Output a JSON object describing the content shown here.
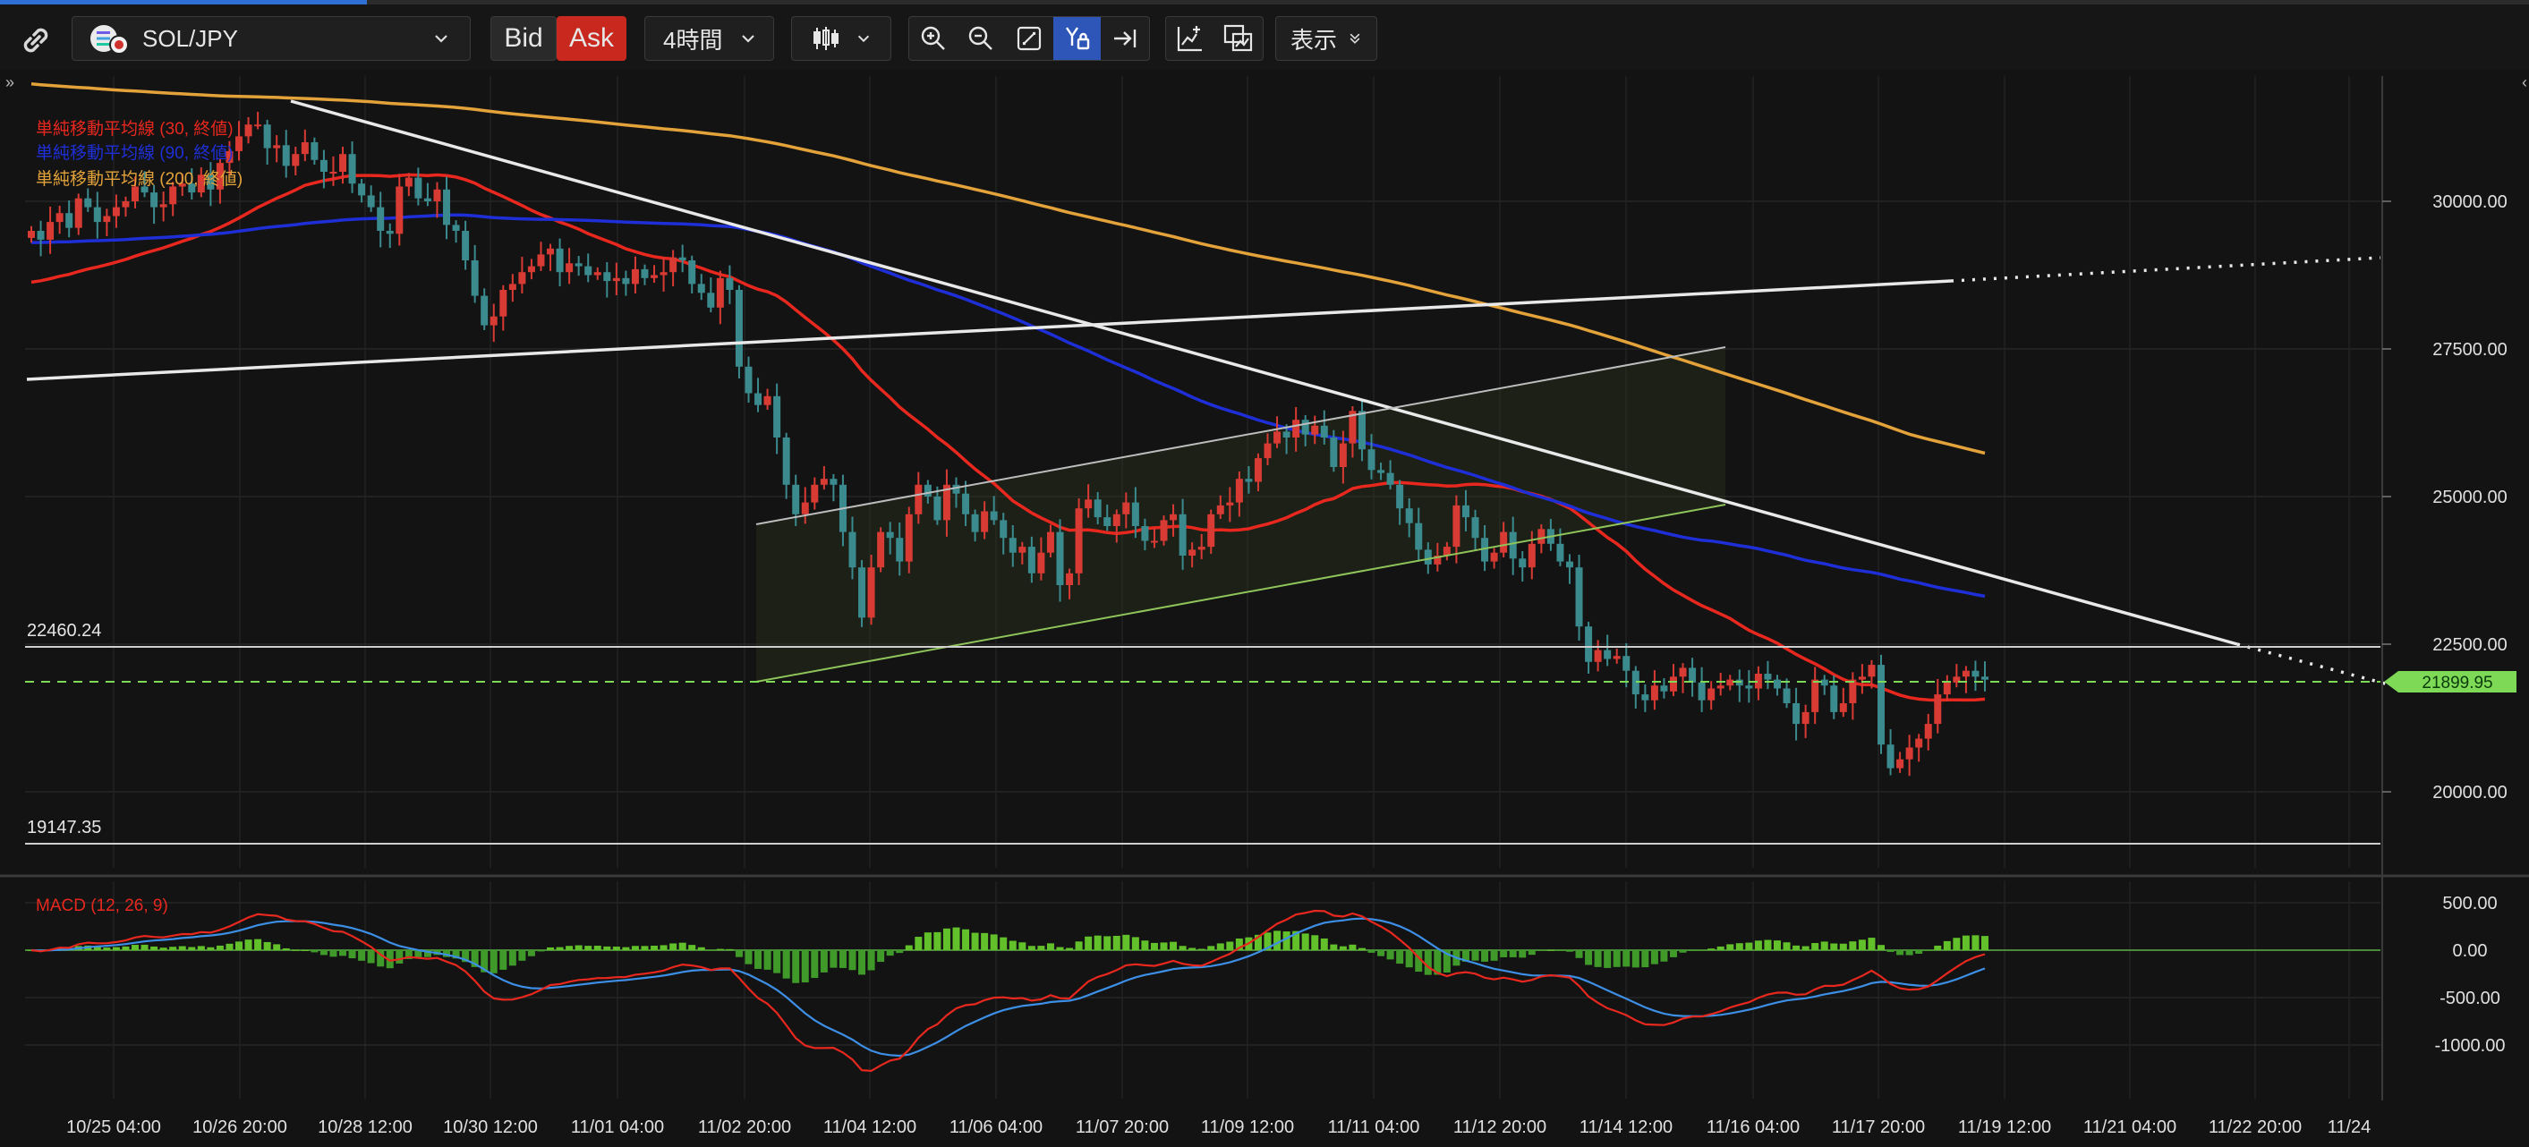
{
  "toolbar": {
    "symbol": "SOL/JPY",
    "bid_label": "Bid",
    "ask_label": "Ask",
    "timeframe": "4時間",
    "view_label": "表示",
    "icons": [
      "link-icon",
      "symbol-logo-icon",
      "chevron-down-icon",
      "candlestick-icon",
      "zoom-in-icon",
      "zoom-out-icon",
      "fit-screen-icon",
      "y-axis-lock-icon",
      "scroll-to-end-icon",
      "add-indicator-icon",
      "compare-icon"
    ]
  },
  "colors": {
    "background": "#131313",
    "up_candle": "#d83a34",
    "down_candle": "#3a8a8e",
    "sma30": "#e8281e",
    "sma90": "#1f2fd8",
    "sma200": "#e3a33a",
    "price_tag": "#7ed957",
    "macd_line": "#e8281e",
    "signal_line": "#3d8fe6",
    "hist_pos": "#62c02a",
    "hist_neg": "#3f9a2a"
  },
  "chart_data": [
    {
      "type": "candlestick",
      "title": "",
      "y_ticks": [
        20000,
        22500,
        25000,
        27500,
        30000
      ],
      "y_tick_labels": [
        "20000.00",
        "22500.00",
        "25000.00",
        "27500.00",
        "30000.00"
      ],
      "ylim": [
        18200,
        31700
      ],
      "x_tick_labels": [
        "10/25 04:00",
        "10/26 20:00",
        "10/28 12:00",
        "10/30 12:00",
        "11/01 04:00",
        "11/02 20:00",
        "11/04 12:00",
        "11/06 04:00",
        "11/07 20:00",
        "11/09 12:00",
        "11/11 04:00",
        "11/12 20:00",
        "11/14 12:00",
        "11/16 04:00",
        "11/17 20:00",
        "11/19 12:00",
        "11/21 04:00",
        "11/22 20:00",
        "11/24"
      ],
      "current_price_label": "21899.95",
      "current_price": 21899.95,
      "level_labels": [
        "22460.24",
        "19147.35"
      ],
      "levels": [
        22460.24,
        19147.35
      ],
      "legend": [
        {
          "name": "単純移動平均線 (30, 終値)",
          "color": "#e8281e"
        },
        {
          "name": "単純移動平均線 (90, 終値)",
          "color": "#1f2fd8"
        },
        {
          "name": "単純移動平均線 (200, 終値)",
          "color": "#e3a33a"
        }
      ],
      "closes": [
        29500,
        29350,
        29650,
        29800,
        29550,
        30050,
        29900,
        29650,
        29750,
        29900,
        30000,
        30250,
        30150,
        29900,
        29950,
        30250,
        30300,
        30150,
        30450,
        30200,
        30650,
        30850,
        31100,
        31300,
        31300,
        30900,
        30950,
        30600,
        30800,
        31000,
        30700,
        30500,
        30500,
        30800,
        30300,
        30100,
        29900,
        29500,
        29450,
        30250,
        30400,
        30050,
        30000,
        30200,
        29600,
        29500,
        29000,
        28400,
        27900,
        28050,
        28500,
        28600,
        28800,
        28900,
        29100,
        29200,
        28800,
        28950,
        28900,
        28750,
        28800,
        28650,
        28700,
        28600,
        28850,
        28700,
        28750,
        28800,
        29050,
        29000,
        28600,
        28450,
        28200,
        28700,
        28500,
        27200,
        26750,
        26550,
        26700,
        26000,
        25200,
        24700,
        24900,
        25200,
        25300,
        25200,
        24400,
        23800,
        22950,
        23800,
        24400,
        24300,
        23900,
        24700,
        25200,
        25000,
        24600,
        25200,
        25050,
        24700,
        24400,
        24750,
        24600,
        24300,
        24050,
        24150,
        23700,
        24050,
        24400,
        23500,
        23700,
        24800,
        24950,
        24650,
        24500,
        24700,
        24900,
        24500,
        24250,
        24250,
        24600,
        24700,
        24000,
        24100,
        24150,
        24700,
        24850,
        24900,
        25300,
        25250,
        25650,
        25900,
        26100,
        26000,
        26300,
        26050,
        26200,
        26000,
        25500,
        25900,
        26450,
        25800,
        25450,
        25400,
        25200,
        24800,
        24550,
        24100,
        23850,
        24000,
        24150,
        24850,
        24650,
        24300,
        23900,
        24050,
        24400,
        23950,
        23800,
        24200,
        24450,
        24200,
        23900,
        23800,
        22800,
        22200,
        22400,
        22250,
        22300,
        22050,
        21650,
        21550,
        21800,
        21700,
        21950,
        22100,
        21850,
        21550,
        21750,
        21800,
        21900,
        21800,
        21750,
        22000,
        21900,
        21750,
        21500,
        21150,
        21350,
        21900,
        21800,
        21350,
        21500,
        21900,
        21950,
        22150,
        20800,
        20400,
        20550,
        20750,
        20900,
        21150,
        21650,
        21850,
        21950,
        22050,
        21950,
        21899.95
      ],
      "indicator": {
        "name": "MACD (12, 26, 9)",
        "y_tick_labels": [
          "500.00",
          "0.00",
          "-500.00",
          "-1000.00"
        ],
        "y_ticks": [
          500,
          0,
          -500,
          -1000
        ],
        "ylim": [
          -1500,
          750
        ]
      }
    }
  ]
}
